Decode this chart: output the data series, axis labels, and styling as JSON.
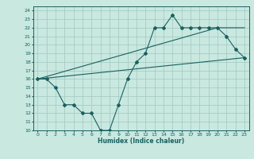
{
  "xlabel": "Humidex (Indice chaleur)",
  "ylabel": "",
  "xlim": [
    -0.5,
    23.5
  ],
  "ylim": [
    10,
    24.5
  ],
  "yticks": [
    10,
    11,
    12,
    13,
    14,
    15,
    16,
    17,
    18,
    19,
    20,
    21,
    22,
    23,
    24
  ],
  "xticks": [
    0,
    1,
    2,
    3,
    4,
    5,
    6,
    7,
    8,
    9,
    10,
    11,
    12,
    13,
    14,
    15,
    16,
    17,
    18,
    19,
    20,
    21,
    22,
    23
  ],
  "bg_color": "#c8e8e0",
  "grid_color": "#a0c8c0",
  "line_color": "#1a6060",
  "line1_x": [
    0,
    1,
    2,
    3,
    4,
    5,
    6,
    7,
    8,
    9,
    10,
    11,
    12,
    13,
    14,
    15,
    16,
    17,
    18,
    19,
    20,
    21,
    22,
    23
  ],
  "line1_y": [
    16,
    16,
    15,
    13,
    13,
    12,
    12,
    10,
    10,
    13,
    16,
    18,
    19,
    22,
    22,
    23.5,
    22,
    22,
    22,
    22,
    22,
    21,
    19.5,
    18.5
  ],
  "line2_x": [
    0,
    23
  ],
  "line2_y": [
    16,
    18.5
  ],
  "line3_x": [
    0,
    10,
    20,
    23
  ],
  "line3_y": [
    16,
    19,
    22,
    22
  ]
}
